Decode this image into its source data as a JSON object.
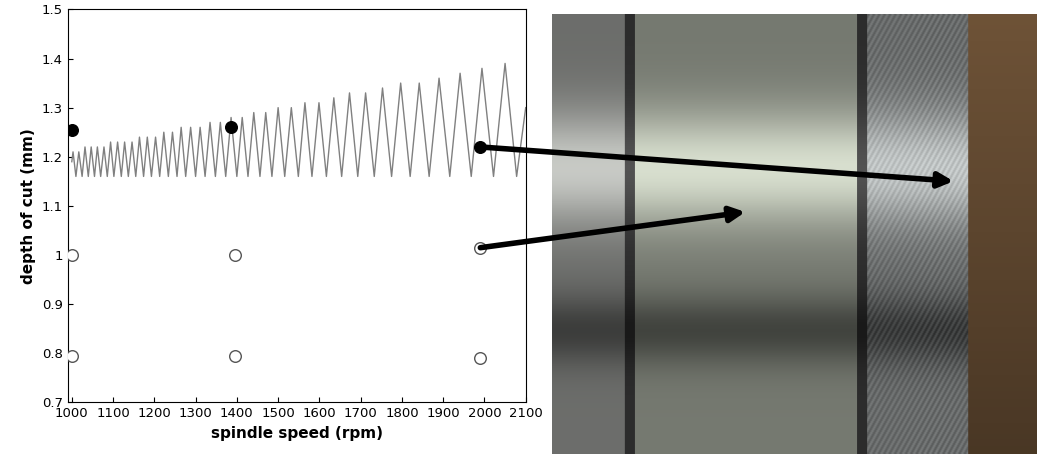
{
  "chart_data": {
    "type": "line",
    "xlabel": "spindle speed (rpm)",
    "ylabel": "depth of cut (mm)",
    "xlim": [
      990,
      2100
    ],
    "xticks": [
      1000,
      1100,
      1200,
      1300,
      1400,
      1500,
      1600,
      1700,
      1800,
      1900,
      2000,
      2100
    ],
    "ylim": [
      0.7,
      1.5
    ],
    "yticks": [
      0.7,
      0.8,
      0.9,
      1,
      1.1,
      1.2,
      1.3,
      1.4,
      1.5
    ],
    "grid": false,
    "series": [
      {
        "type": "line",
        "color": "#808080",
        "line_style": "solid",
        "x": [
          1000,
          1003,
          1010,
          1017,
          1025,
          1032,
          1040,
          1047,
          1055,
          1062,
          1070,
          1078,
          1086,
          1094,
          1102,
          1111,
          1120,
          1128,
          1137,
          1146,
          1155,
          1164,
          1174,
          1183,
          1193,
          1203,
          1213,
          1223,
          1234,
          1244,
          1255,
          1265,
          1276,
          1288,
          1300,
          1311,
          1323,
          1335,
          1348,
          1360,
          1373,
          1386,
          1400,
          1413,
          1427,
          1441,
          1456,
          1470,
          1485,
          1500,
          1516,
          1532,
          1549,
          1565,
          1582,
          1599,
          1617,
          1635,
          1654,
          1673,
          1693,
          1712,
          1733,
          1753,
          1775,
          1797,
          1820,
          1842,
          1866,
          1890,
          1916,
          1941,
          1968,
          1994,
          2022,
          2050,
          2078,
          2100
        ],
        "values": [
          1.19,
          1.21,
          1.16,
          1.21,
          1.16,
          1.22,
          1.16,
          1.22,
          1.16,
          1.22,
          1.16,
          1.22,
          1.16,
          1.23,
          1.16,
          1.23,
          1.16,
          1.23,
          1.16,
          1.23,
          1.16,
          1.24,
          1.16,
          1.24,
          1.16,
          1.24,
          1.16,
          1.25,
          1.16,
          1.25,
          1.16,
          1.26,
          1.16,
          1.26,
          1.16,
          1.26,
          1.16,
          1.27,
          1.16,
          1.27,
          1.16,
          1.28,
          1.16,
          1.28,
          1.16,
          1.29,
          1.16,
          1.29,
          1.16,
          1.3,
          1.16,
          1.3,
          1.16,
          1.31,
          1.16,
          1.31,
          1.16,
          1.32,
          1.16,
          1.33,
          1.16,
          1.33,
          1.16,
          1.34,
          1.16,
          1.35,
          1.16,
          1.35,
          1.16,
          1.36,
          1.16,
          1.37,
          1.16,
          1.38,
          1.16,
          1.39,
          1.16,
          1.3
        ]
      },
      {
        "type": "scatter",
        "color": "#000000",
        "marker": "filled",
        "x": [
          1000,
          1385,
          1990
        ],
        "values": [
          1.255,
          1.26,
          1.22
        ]
      },
      {
        "type": "scatter",
        "color": "#000000",
        "marker": "open",
        "x": [
          1000,
          1395,
          1990,
          1000,
          1395,
          1990
        ],
        "values": [
          1.0,
          1.0,
          1.015,
          0.795,
          0.795,
          0.79
        ]
      }
    ]
  }
}
